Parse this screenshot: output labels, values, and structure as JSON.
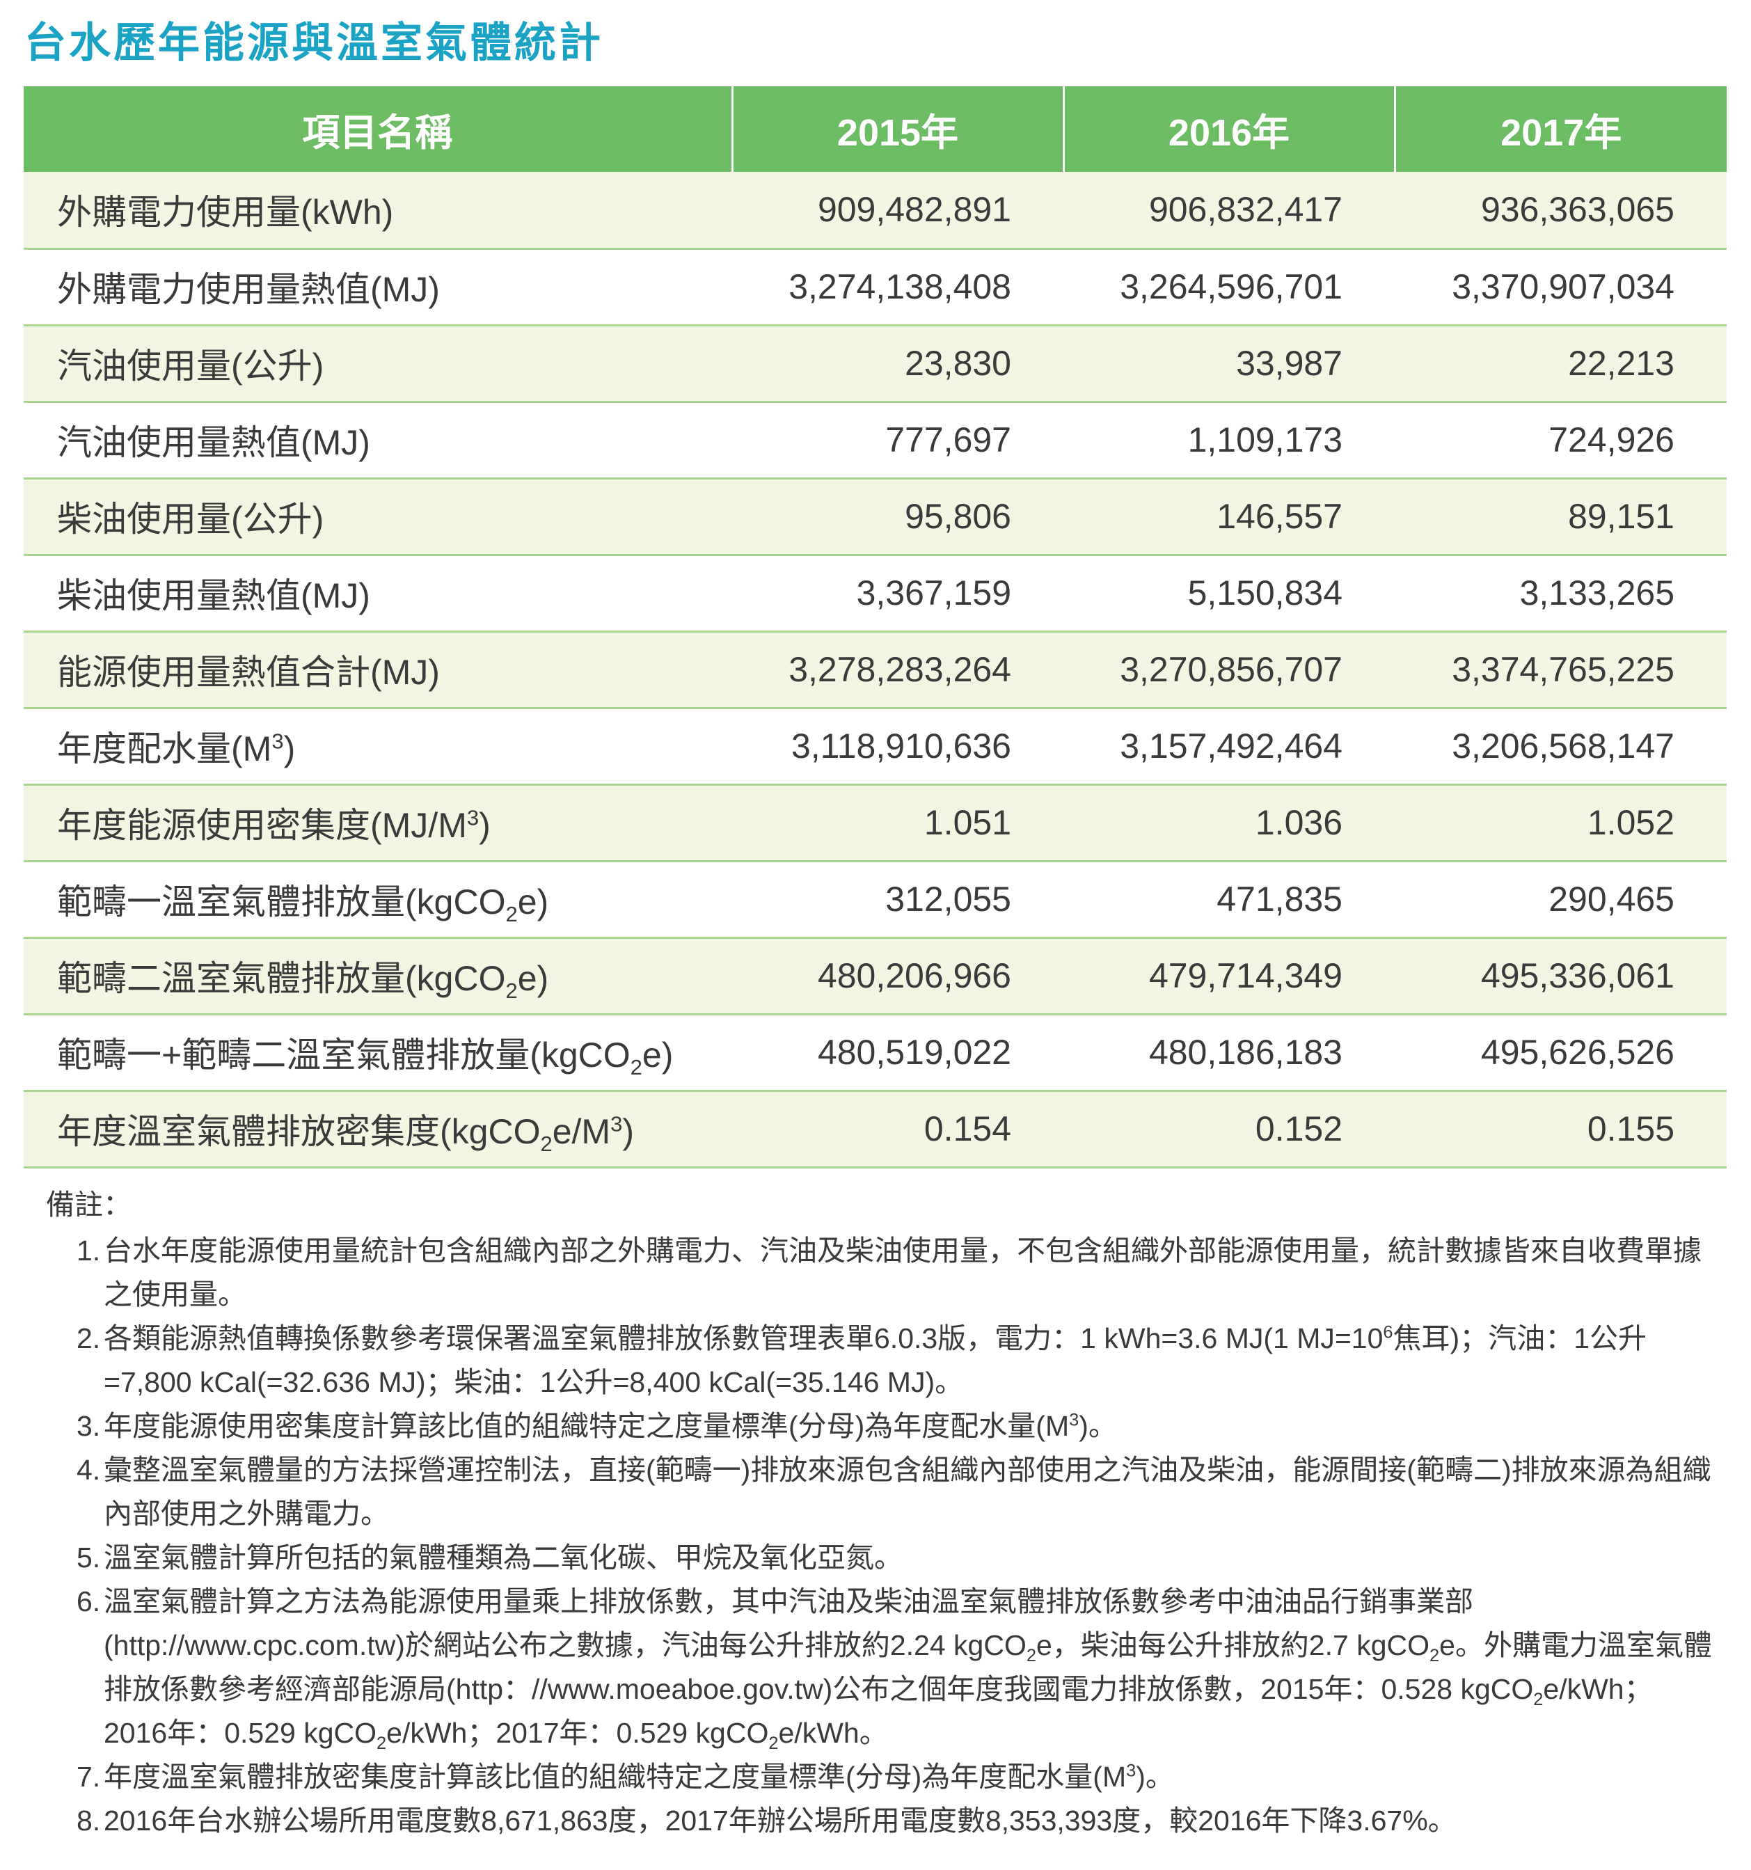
{
  "title": "台水歷年能源與溫室氣體統計",
  "table": {
    "headers": [
      "項目名稱",
      "2015年",
      "2016年",
      "2017年"
    ],
    "rows": [
      {
        "label": "外購電力使用量(kWh)",
        "values": [
          "909,482,891",
          "906,832,417",
          "936,363,065"
        ]
      },
      {
        "label": "外購電力使用量熱值(MJ)",
        "values": [
          "3,274,138,408",
          "3,264,596,701",
          "3,370,907,034"
        ]
      },
      {
        "label": "汽油使用量(公升)",
        "values": [
          "23,830",
          "33,987",
          "22,213"
        ]
      },
      {
        "label": "汽油使用量熱值(MJ)",
        "values": [
          "777,697",
          "1,109,173",
          "724,926"
        ]
      },
      {
        "label": "柴油使用量(公升)",
        "values": [
          "95,806",
          "146,557",
          "89,151"
        ]
      },
      {
        "label": "柴油使用量熱值(MJ)",
        "values": [
          "3,367,159",
          "5,150,834",
          "3,133,265"
        ]
      },
      {
        "label": "能源使用量熱值合計(MJ)",
        "values": [
          "3,278,283,264",
          "3,270,856,707",
          "3,374,765,225"
        ]
      },
      {
        "label_parts": [
          "年度配水量(M",
          "3",
          ")"
        ],
        "values": [
          "3,118,910,636",
          "3,157,492,464",
          "3,206,568,147"
        ]
      },
      {
        "label_parts": [
          "年度能源使用密集度(MJ/M",
          "3",
          ")"
        ],
        "values": [
          "1.051",
          "1.036",
          "1.052"
        ]
      },
      {
        "label_parts": [
          "範疇一溫室氣體排放量(kgCO",
          "2",
          "e)"
        ],
        "values": [
          "312,055",
          "471,835",
          "290,465"
        ]
      },
      {
        "label_parts": [
          "範疇二溫室氣體排放量(kgCO",
          "2",
          "e)"
        ],
        "values": [
          "480,206,966",
          "479,714,349",
          "495,336,061"
        ]
      },
      {
        "label_parts": [
          "範疇一+範疇二溫室氣體排放量(kgCO",
          "2",
          "e)"
        ],
        "values": [
          "480,519,022",
          "480,186,183",
          "495,626,526"
        ]
      },
      {
        "label_parts": [
          "年度溫室氣體排放密集度(kgCO",
          "2",
          "e/M",
          "3",
          ")"
        ],
        "values": [
          "0.154",
          "0.152",
          "0.155"
        ]
      }
    ]
  },
  "notes": {
    "heading": "備註：",
    "items": [
      {
        "num": "1.",
        "parts": [
          "台水年度能源使用量統計包含組織內部之外購電力、汽油及柴油使用量，不包含組織外部能源使用量，統計數據皆來自收費單據之使用量。"
        ]
      },
      {
        "num": "2.",
        "parts": [
          "各類能源熱值轉換係數參考環保署溫室氣體排放係數管理表單6.0.3版，電力：1 kWh=3.6 MJ(1 MJ=10",
          "6",
          "焦耳)；汽油：1公升=7,800 kCal(=32.636 MJ)；柴油：1公升=8,400 kCal(=35.146 MJ)。"
        ]
      },
      {
        "num": "3.",
        "parts": [
          "年度能源使用密集度計算該比值的組織特定之度量標準(分母)為年度配水量(M",
          "3",
          ")。"
        ]
      },
      {
        "num": "4.",
        "parts": [
          "彙整溫室氣體量的方法採營運控制法，直接(範疇一)排放來源包含組織內部使用之汽油及柴油，能源間接(範疇二)排放來源為組織內部使用之外購電力。"
        ]
      },
      {
        "num": "5.",
        "parts": [
          "溫室氣體計算所包括的氣體種類為二氧化碳、甲烷及氧化亞氮。"
        ]
      },
      {
        "num": "6.",
        "parts": [
          "溫室氣體計算之方法為能源使用量乘上排放係數，其中汽油及柴油溫室氣體排放係數參考中油油品行銷事業部(http://www.cpc.com.tw)於網站公布之數據，汽油每公升排放約2.24 kgCO",
          "2",
          "e，柴油每公升排放約2.7 kgCO",
          "2",
          "e。外購電力溫室氣體排放係數參考經濟部能源局(http：//www.moeaboe.gov.tw)公布之個年度我國電力排放係數，2015年：0.528 kgCO",
          "2",
          "e/kWh；2016年：0.529 kgCO",
          "2",
          "e/kWh；2017年：0.529 kgCO",
          "2",
          "e/kWh。"
        ]
      },
      {
        "num": "7.",
        "parts": [
          "年度溫室氣體排放密集度計算該比值的組織特定之度量標準(分母)為年度配水量(M",
          "3",
          ")。"
        ]
      },
      {
        "num": "8.",
        "parts": [
          " 2016年台水辦公場所用電度數8,671,863度，2017年辦公場所用電度數8,353,393度，較2016年下降3.67%。"
        ]
      }
    ]
  },
  "colors": {
    "title": "#1aa3c4",
    "header_bg": "#6cbc64",
    "row_alt_bg": "#f1f6e3",
    "row_divider": "#a9d58f"
  }
}
